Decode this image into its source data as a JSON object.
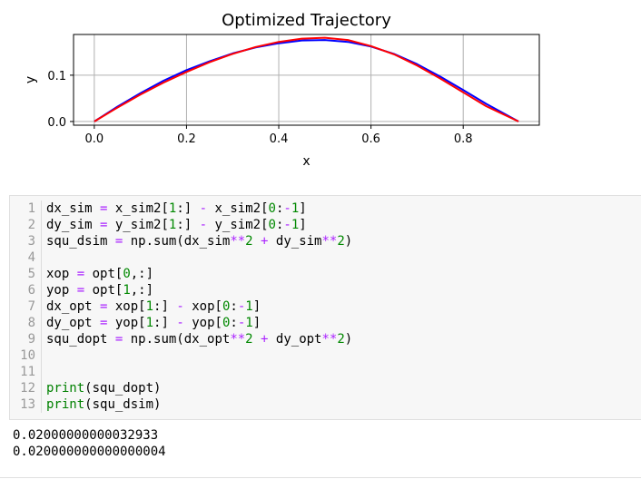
{
  "chart_data": {
    "type": "line",
    "title": "Optimized Trajectory",
    "xlabel": "x",
    "ylabel": "y",
    "xlim": [
      -0.045,
      0.965
    ],
    "ylim": [
      -0.008,
      0.188
    ],
    "xticks": [
      0.0,
      0.2,
      0.4,
      0.6,
      0.8
    ],
    "xtick_labels": [
      "0.0",
      "0.2",
      "0.4",
      "0.6",
      "0.8"
    ],
    "yticks": [
      0.0,
      0.1
    ],
    "ytick_labels": [
      "0.0",
      "0.1"
    ],
    "grid": true,
    "series": [
      {
        "color": "#0000ff",
        "x": [
          0.0,
          0.05,
          0.1,
          0.15,
          0.2,
          0.25,
          0.3,
          0.35,
          0.4,
          0.45,
          0.5,
          0.55,
          0.6,
          0.65,
          0.7,
          0.75,
          0.8,
          0.85,
          0.92
        ],
        "y": [
          0.0,
          0.032,
          0.061,
          0.088,
          0.111,
          0.13,
          0.147,
          0.16,
          0.169,
          0.175,
          0.176,
          0.172,
          0.162,
          0.146,
          0.124,
          0.097,
          0.068,
          0.038,
          0.0
        ]
      },
      {
        "color": "#ff0000",
        "x": [
          0.0,
          0.05,
          0.1,
          0.15,
          0.2,
          0.25,
          0.3,
          0.35,
          0.4,
          0.45,
          0.5,
          0.55,
          0.6,
          0.65,
          0.7,
          0.75,
          0.8,
          0.85,
          0.92
        ],
        "y": [
          0.0,
          0.03,
          0.058,
          0.084,
          0.107,
          0.128,
          0.146,
          0.161,
          0.172,
          0.179,
          0.181,
          0.176,
          0.163,
          0.145,
          0.121,
          0.093,
          0.063,
          0.033,
          0.0
        ]
      }
    ]
  },
  "code": {
    "lines": [
      {
        "num": "1",
        "text": "dx_sim = x_sim2[1:] - x_sim2[0:-1]"
      },
      {
        "num": "2",
        "text": "dy_sim = y_sim2[1:] - y_sim2[0:-1]"
      },
      {
        "num": "3",
        "text": "squ_dsim = np.sum(dx_sim**2 + dy_sim**2)"
      },
      {
        "num": "4",
        "text": ""
      },
      {
        "num": "5",
        "text": "xop = opt[0,:]"
      },
      {
        "num": "6",
        "text": "yop = opt[1,:]"
      },
      {
        "num": "7",
        "text": "dx_opt = xop[1:] - xop[0:-1]"
      },
      {
        "num": "8",
        "text": "dy_opt = yop[1:] - yop[0:-1]"
      },
      {
        "num": "9",
        "text": "squ_dopt = np.sum(dx_opt**2 + dy_opt**2)"
      },
      {
        "num": "10",
        "text": ""
      },
      {
        "num": "11",
        "text": ""
      },
      {
        "num": "12",
        "text": "print(squ_dopt)"
      },
      {
        "num": "13",
        "text": "print(squ_dsim)"
      }
    ]
  },
  "output": {
    "lines": [
      "0.02000000000032933",
      "0.020000000000000004"
    ]
  }
}
